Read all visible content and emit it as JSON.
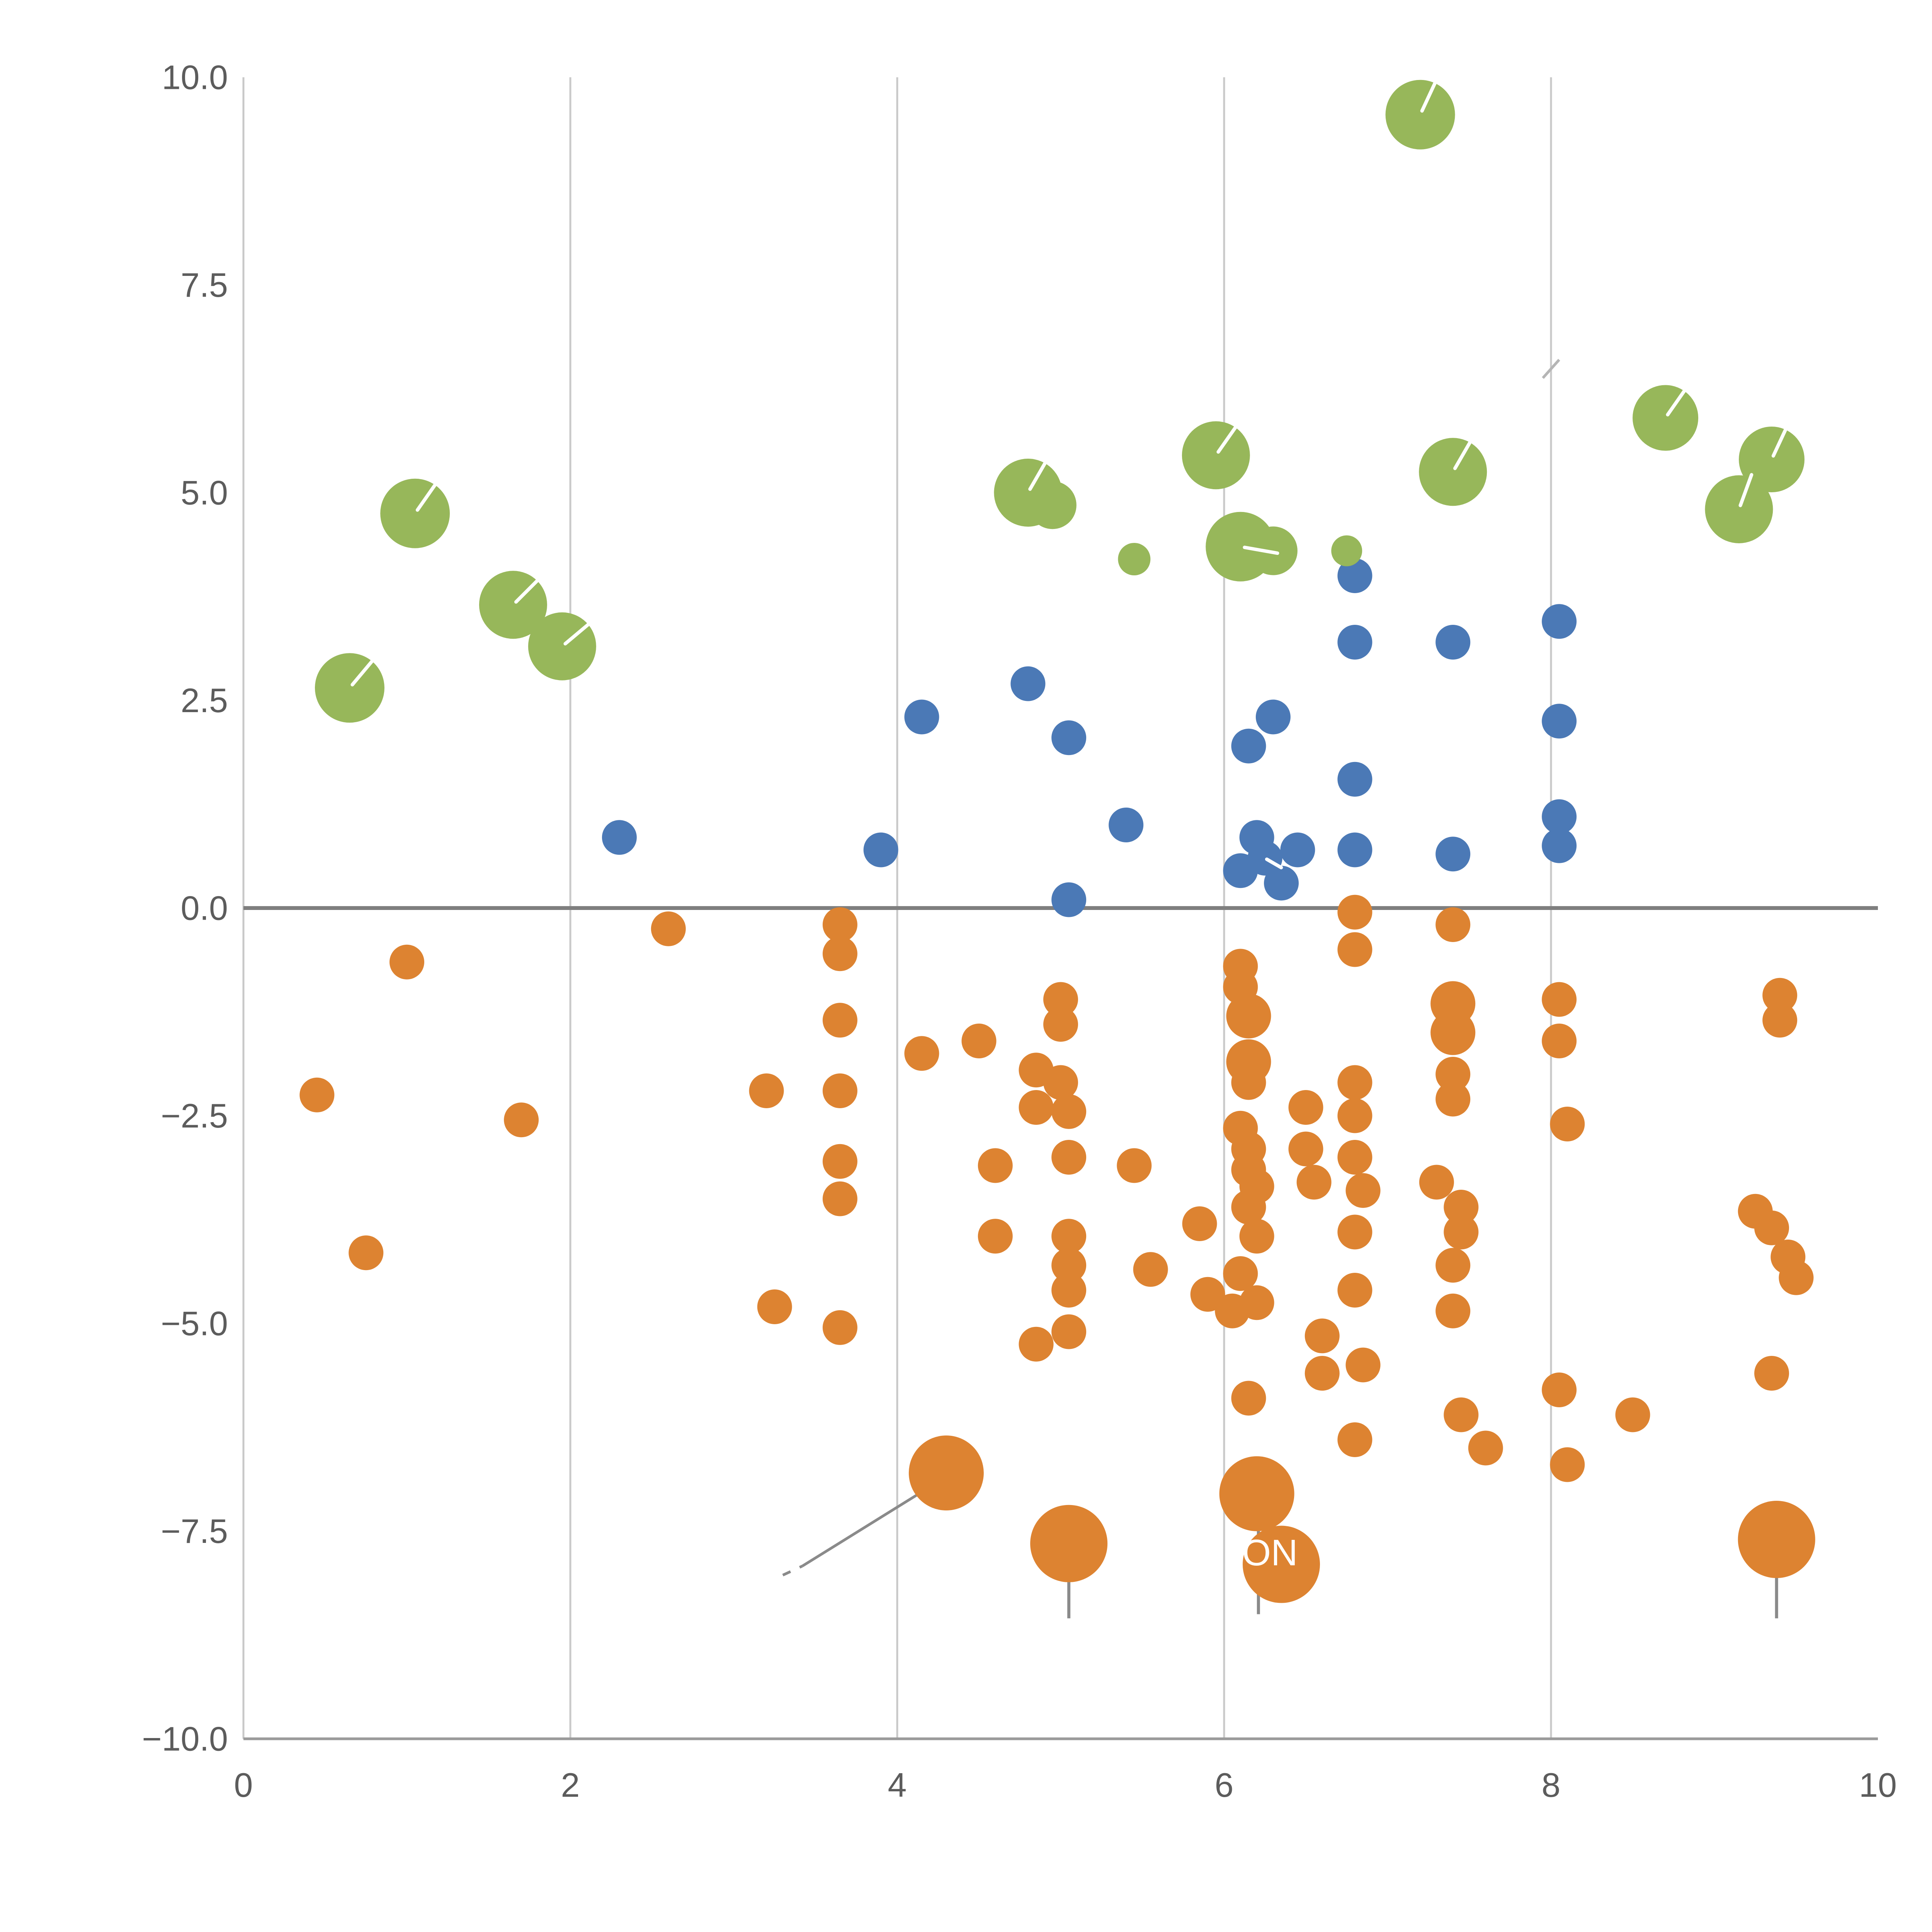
{
  "chart_data": {
    "type": "scatter",
    "title": "",
    "xlabel": "",
    "ylabel": "",
    "xlim": [
      0,
      10
    ],
    "ylim": [
      -10,
      10
    ],
    "grid": {
      "vertical_at": [
        2,
        4,
        6,
        8
      ],
      "horizontal": false,
      "left_spine": true,
      "bottom_spine": true
    },
    "x_ticks": [
      {
        "value": 0,
        "label": "0"
      },
      {
        "value": 2,
        "label": "2"
      },
      {
        "value": 4,
        "label": "4"
      },
      {
        "value": 6,
        "label": "6"
      },
      {
        "value": 8,
        "label": "8"
      },
      {
        "value": 10,
        "label": "10"
      }
    ],
    "y_ticks": [
      {
        "value": -10,
        "label": "−10.0"
      },
      {
        "value": -7.5,
        "label": "−7.5"
      },
      {
        "value": -5,
        "label": "−5.0"
      },
      {
        "value": -2.5,
        "label": "−2.5"
      },
      {
        "value": 0,
        "label": "0.0"
      },
      {
        "value": 2.5,
        "label": "2.5"
      },
      {
        "value": 5,
        "label": "5.0"
      },
      {
        "value": 7.5,
        "label": "7.5"
      },
      {
        "value": 10,
        "label": "10.0"
      }
    ],
    "colors": {
      "grid": "#c9c9c9",
      "axis": "#9a9a9a",
      "zero_line": "#7f7f7f",
      "annotation": "#8a8a8a",
      "faint_annotation": "#b5b5b5",
      "hand": "#ffffff"
    },
    "series": [
      {
        "name": "orange",
        "color": "#dd8331",
        "points": [
          [
            0.45,
            -2.25,
            45
          ],
          [
            0.75,
            -4.15,
            45
          ],
          [
            1.0,
            -0.65,
            45
          ],
          [
            1.7,
            -2.55,
            45
          ],
          [
            2.6,
            -0.25,
            45
          ],
          [
            3.2,
            -2.2,
            45
          ],
          [
            3.25,
            -4.8,
            45
          ],
          [
            3.65,
            -0.2,
            45
          ],
          [
            3.65,
            -0.55,
            45
          ],
          [
            3.65,
            -1.35,
            45
          ],
          [
            3.65,
            -2.2,
            45
          ],
          [
            3.65,
            -3.05,
            45
          ],
          [
            3.65,
            -3.5,
            45
          ],
          [
            3.65,
            -5.05,
            45
          ],
          [
            4.15,
            -1.75,
            45
          ],
          [
            4.3,
            -6.8,
            97
          ],
          [
            4.5,
            -1.6,
            45
          ],
          [
            4.6,
            -3.1,
            45
          ],
          [
            4.6,
            -3.95,
            45
          ],
          [
            4.85,
            -1.95,
            45
          ],
          [
            4.85,
            -2.4,
            45
          ],
          [
            4.85,
            -5.25,
            45
          ],
          [
            5.0,
            -1.1,
            45
          ],
          [
            5.0,
            -1.4,
            45
          ],
          [
            5.0,
            -2.1,
            45
          ],
          [
            5.05,
            -2.45,
            45
          ],
          [
            5.05,
            -3.0,
            45
          ],
          [
            5.05,
            -3.95,
            45
          ],
          [
            5.05,
            -4.3,
            45
          ],
          [
            5.05,
            -4.6,
            45
          ],
          [
            5.05,
            -5.1,
            45
          ],
          [
            5.05,
            -7.65,
            100
          ],
          [
            5.45,
            -3.1,
            45
          ],
          [
            5.55,
            -4.35,
            45
          ],
          [
            5.85,
            -3.8,
            45
          ],
          [
            5.9,
            -4.65,
            45
          ],
          [
            6.1,
            -0.7,
            45
          ],
          [
            6.1,
            -0.95,
            45
          ],
          [
            6.15,
            -1.3,
            58
          ],
          [
            6.15,
            -1.85,
            58
          ],
          [
            6.15,
            -2.1,
            45
          ],
          [
            6.1,
            -2.65,
            45
          ],
          [
            6.15,
            -2.9,
            45
          ],
          [
            6.15,
            -3.15,
            45
          ],
          [
            6.2,
            -3.35,
            45
          ],
          [
            6.15,
            -3.6,
            45
          ],
          [
            6.2,
            -3.95,
            45
          ],
          [
            6.1,
            -4.4,
            45
          ],
          [
            6.05,
            -4.85,
            45
          ],
          [
            6.2,
            -4.75,
            45
          ],
          [
            6.15,
            -5.9,
            45
          ],
          [
            6.2,
            -7.05,
            97
          ],
          [
            6.35,
            -7.9,
            100
          ],
          [
            6.5,
            -2.4,
            45
          ],
          [
            6.5,
            -2.9,
            45
          ],
          [
            6.55,
            -3.3,
            45
          ],
          [
            6.6,
            -5.15,
            45
          ],
          [
            6.6,
            -5.6,
            45
          ],
          [
            6.8,
            -0.05,
            45
          ],
          [
            6.8,
            -0.5,
            45
          ],
          [
            6.8,
            -2.1,
            45
          ],
          [
            6.8,
            -2.5,
            45
          ],
          [
            6.8,
            -3.0,
            45
          ],
          [
            6.85,
            -3.4,
            45
          ],
          [
            6.8,
            -3.9,
            45
          ],
          [
            6.8,
            -4.6,
            45
          ],
          [
            6.85,
            -5.5,
            45
          ],
          [
            6.8,
            -6.4,
            45
          ],
          [
            7.3,
            -3.3,
            45
          ],
          [
            7.4,
            -0.2,
            45
          ],
          [
            7.4,
            -1.15,
            58
          ],
          [
            7.4,
            -1.5,
            58
          ],
          [
            7.4,
            -2.0,
            45
          ],
          [
            7.4,
            -2.3,
            45
          ],
          [
            7.45,
            -3.6,
            45
          ],
          [
            7.45,
            -3.9,
            45
          ],
          [
            7.4,
            -4.3,
            45
          ],
          [
            7.4,
            -4.85,
            45
          ],
          [
            7.45,
            -6.1,
            45
          ],
          [
            7.6,
            -6.5,
            45
          ],
          [
            8.05,
            -1.1,
            45
          ],
          [
            8.05,
            -1.6,
            45
          ],
          [
            8.1,
            -2.6,
            45
          ],
          [
            8.05,
            -5.8,
            45
          ],
          [
            8.1,
            -6.7,
            45
          ],
          [
            8.5,
            -6.1,
            45
          ],
          [
            9.25,
            -3.65,
            45
          ],
          [
            9.35,
            -3.85,
            45
          ],
          [
            9.4,
            -1.05,
            45
          ],
          [
            9.4,
            -1.35,
            45
          ],
          [
            9.45,
            -4.2,
            45
          ],
          [
            9.5,
            -4.45,
            45
          ],
          [
            9.35,
            -5.6,
            45
          ],
          [
            9.38,
            -7.6,
            100
          ]
        ]
      },
      {
        "name": "blue",
        "color": "#4b79b6",
        "points": [
          [
            2.3,
            0.85,
            45
          ],
          [
            3.9,
            0.7,
            45
          ],
          [
            4.15,
            2.3,
            45
          ],
          [
            4.8,
            2.7,
            45
          ],
          [
            5.05,
            2.05,
            45
          ],
          [
            5.05,
            0.1,
            45
          ],
          [
            5.4,
            1.0,
            45
          ],
          [
            6.15,
            1.95,
            45
          ],
          [
            6.3,
            2.3,
            45
          ],
          [
            6.2,
            0.85,
            45
          ],
          [
            6.1,
            0.45,
            45
          ],
          [
            6.25,
            0.6,
            45,
            -30
          ],
          [
            6.35,
            0.3,
            45
          ],
          [
            6.45,
            0.7,
            45
          ],
          [
            6.8,
            4.0,
            45
          ],
          [
            6.8,
            3.2,
            45
          ],
          [
            6.8,
            1.55,
            45
          ],
          [
            6.8,
            0.7,
            45
          ],
          [
            7.4,
            3.2,
            45
          ],
          [
            7.4,
            0.65,
            45
          ],
          [
            8.05,
            3.45,
            45
          ],
          [
            8.05,
            2.25,
            45
          ],
          [
            8.05,
            1.1,
            45
          ],
          [
            8.05,
            0.75,
            45
          ]
        ]
      },
      {
        "name": "green",
        "color": "#97b75a",
        "points": [
          [
            0.65,
            2.65,
            90,
            50
          ],
          [
            1.05,
            4.75,
            90,
            55
          ],
          [
            1.65,
            3.65,
            88,
            45
          ],
          [
            1.95,
            3.15,
            88,
            40
          ],
          [
            4.8,
            5.0,
            88,
            60
          ],
          [
            4.95,
            4.85,
            62
          ],
          [
            5.45,
            4.2,
            42
          ],
          [
            5.95,
            5.45,
            88,
            55
          ],
          [
            6.1,
            4.35,
            90,
            -10
          ],
          [
            6.3,
            4.3,
            63
          ],
          [
            6.75,
            4.3,
            40
          ],
          [
            7.2,
            9.55,
            90,
            65
          ],
          [
            7.4,
            5.25,
            88,
            60
          ],
          [
            8.7,
            5.9,
            85,
            55
          ],
          [
            9.15,
            4.8,
            88,
            70
          ],
          [
            9.35,
            5.4,
            85,
            65
          ]
        ]
      }
    ],
    "annotations": {
      "text": {
        "label": "ON",
        "x": 6.11,
        "y": -7.76,
        "color": "#ffffff"
      },
      "leader_line": {
        "dashed": [
          3.3,
          -8.03,
          3.42,
          -7.92
        ],
        "solid": [
          3.42,
          -7.92,
          4.28,
          -6.87
        ]
      },
      "stems": [
        {
          "x": 5.05,
          "y1": -7.7,
          "y2": -8.55
        },
        {
          "x": 6.21,
          "y1": -7.1,
          "y2": -8.5
        },
        {
          "x": 9.38,
          "y1": -7.65,
          "y2": -8.55
        }
      ],
      "top_dash": {
        "x1": 7.95,
        "y1": 6.38,
        "x2": 8.05,
        "y2": 6.6
      }
    }
  }
}
